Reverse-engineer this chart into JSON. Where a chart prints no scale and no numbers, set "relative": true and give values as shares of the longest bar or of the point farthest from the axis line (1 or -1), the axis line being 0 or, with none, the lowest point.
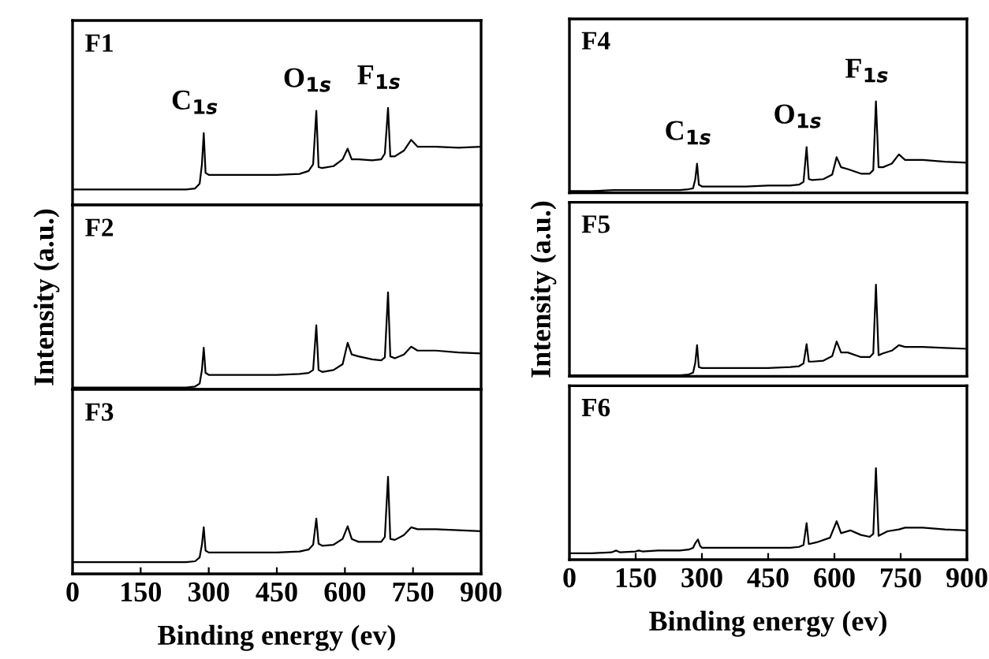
{
  "chart_data": [
    {
      "type": "line",
      "relative": true,
      "xlim": [
        0,
        900
      ],
      "xticks": [
        0,
        150,
        300,
        450,
        600,
        750,
        900
      ],
      "tick_labels": false,
      "x": [
        0,
        50,
        100,
        150,
        200,
        250,
        270,
        280,
        285,
        289,
        293,
        300,
        350,
        400,
        450,
        500,
        520,
        530,
        537,
        542,
        550,
        575,
        595,
        606,
        615,
        630,
        660,
        680,
        688,
        695,
        700,
        710,
        730,
        746,
        760,
        800,
        850,
        900
      ],
      "series": [
        {
          "color": "#000000",
          "values": [
            0.16,
            0.16,
            0.16,
            0.16,
            0.16,
            0.16,
            0.17,
            0.22,
            0.42,
            0.74,
            0.33,
            0.31,
            0.31,
            0.31,
            0.31,
            0.32,
            0.35,
            0.42,
            0.97,
            0.39,
            0.38,
            0.4,
            0.47,
            0.58,
            0.47,
            0.47,
            0.46,
            0.47,
            0.53,
            1,
            0.5,
            0.5,
            0.56,
            0.67,
            0.6,
            0.6,
            0.59,
            0.6
          ]
        }
      ],
      "annotations": [
        "F1",
        {
          "text": "C$_{1s}$",
          "x": 289,
          "y": 0.74
        },
        {
          "text": "O$_{1s}$",
          "x": 537,
          "y": 0.97
        },
        {
          "text": "F$_{1s}$",
          "x": 695,
          "y": 1
        }
      ]
    },
    {
      "type": "line",
      "relative": true,
      "xlim": [
        0,
        900
      ],
      "xticks": [
        0,
        150,
        300,
        450,
        600,
        750,
        900
      ],
      "tick_labels": false,
      "ylabel": "Intensity (a.u.)",
      "x": [
        0,
        50,
        100,
        150,
        200,
        250,
        270,
        280,
        285,
        289,
        293,
        300,
        350,
        400,
        450,
        500,
        520,
        530,
        537,
        542,
        550,
        575,
        595,
        606,
        615,
        630,
        660,
        680,
        688,
        695,
        700,
        710,
        730,
        746,
        760,
        800,
        850,
        900
      ],
      "series": [
        {
          "color": "#000000",
          "values": [
            0.02,
            0.02,
            0.02,
            0.02,
            0.02,
            0.02,
            0.03,
            0.06,
            0.2,
            0.43,
            0.17,
            0.15,
            0.15,
            0.15,
            0.15,
            0.16,
            0.17,
            0.2,
            0.66,
            0.2,
            0.18,
            0.2,
            0.26,
            0.48,
            0.36,
            0.34,
            0.31,
            0.3,
            0.33,
            1,
            0.34,
            0.32,
            0.36,
            0.44,
            0.4,
            0.4,
            0.38,
            0.37
          ]
        }
      ],
      "annotations": [
        "F2"
      ]
    },
    {
      "type": "line",
      "relative": true,
      "xlim": [
        0,
        900
      ],
      "xticks": [
        0,
        150,
        300,
        450,
        600,
        750,
        900
      ],
      "tick_labels": "x",
      "xlabel": "Binding energy (ev)",
      "x": [
        0,
        50,
        100,
        150,
        200,
        250,
        270,
        280,
        285,
        289,
        293,
        300,
        350,
        400,
        450,
        500,
        520,
        530,
        537,
        542,
        550,
        575,
        595,
        606,
        615,
        630,
        660,
        680,
        688,
        695,
        700,
        710,
        730,
        746,
        760,
        800,
        850,
        900
      ],
      "series": [
        {
          "color": "#000000",
          "values": [
            0.12,
            0.12,
            0.12,
            0.12,
            0.12,
            0.12,
            0.13,
            0.17,
            0.3,
            0.48,
            0.24,
            0.22,
            0.22,
            0.22,
            0.22,
            0.23,
            0.25,
            0.3,
            0.57,
            0.31,
            0.29,
            0.3,
            0.36,
            0.49,
            0.36,
            0.33,
            0.33,
            0.33,
            0.38,
            1,
            0.36,
            0.35,
            0.4,
            0.48,
            0.46,
            0.46,
            0.45,
            0.44
          ]
        }
      ],
      "annotations": [
        "F3"
      ]
    },
    {
      "type": "line",
      "relative": true,
      "xlim": [
        0,
        900
      ],
      "xticks": [
        0,
        150,
        300,
        450,
        600,
        750,
        900
      ],
      "tick_labels": false,
      "x": [
        0,
        50,
        100,
        150,
        200,
        250,
        270,
        280,
        285,
        289,
        293,
        300,
        350,
        400,
        450,
        500,
        520,
        530,
        537,
        542,
        550,
        575,
        595,
        605,
        615,
        630,
        660,
        680,
        688,
        694,
        700,
        710,
        730,
        746,
        760,
        800,
        850,
        900
      ],
      "series": [
        {
          "color": "#000000",
          "values": [
            0.02,
            0.02,
            0.03,
            0.03,
            0.03,
            0.03,
            0.04,
            0.05,
            0.15,
            0.32,
            0.09,
            0.07,
            0.07,
            0.07,
            0.08,
            0.08,
            0.09,
            0.12,
            0.5,
            0.15,
            0.14,
            0.15,
            0.2,
            0.39,
            0.28,
            0.26,
            0.21,
            0.21,
            0.25,
            1,
            0.28,
            0.28,
            0.32,
            0.42,
            0.36,
            0.36,
            0.34,
            0.33
          ]
        }
      ],
      "annotations": [
        "F4",
        {
          "text": "C$_{1s}$",
          "x": 289,
          "y": 0.32
        },
        {
          "text": "O$_{1s}$",
          "x": 537,
          "y": 0.5
        },
        {
          "text": "F$_{1s}$",
          "x": 694,
          "y": 1
        }
      ]
    },
    {
      "type": "line",
      "relative": true,
      "xlim": [
        0,
        900
      ],
      "xticks": [
        0,
        150,
        300,
        450,
        600,
        750,
        900
      ],
      "tick_labels": false,
      "ylabel": "Intensity (a.u.)",
      "x": [
        0,
        50,
        100,
        150,
        200,
        250,
        270,
        280,
        285,
        289,
        293,
        300,
        350,
        400,
        450,
        500,
        520,
        530,
        537,
        542,
        550,
        575,
        595,
        605,
        615,
        630,
        660,
        680,
        688,
        694,
        700,
        710,
        730,
        746,
        760,
        800,
        850,
        900
      ],
      "series": [
        {
          "color": "#000000",
          "values": [
            0.01,
            0.01,
            0.01,
            0.01,
            0.01,
            0.01,
            0.02,
            0.04,
            0.15,
            0.34,
            0.1,
            0.09,
            0.09,
            0.09,
            0.09,
            0.1,
            0.11,
            0.14,
            0.35,
            0.16,
            0.16,
            0.17,
            0.22,
            0.38,
            0.26,
            0.26,
            0.21,
            0.21,
            0.25,
            1,
            0.23,
            0.25,
            0.28,
            0.34,
            0.32,
            0.32,
            0.31,
            0.3
          ]
        }
      ],
      "annotations": [
        "F5"
      ]
    },
    {
      "type": "line",
      "relative": true,
      "xlim": [
        0,
        900
      ],
      "xticks": [
        0,
        150,
        300,
        450,
        600,
        750,
        900
      ],
      "tick_labels": "x",
      "xlabel": "Binding energy (ev)",
      "x": [
        0,
        50,
        95,
        106,
        115,
        150,
        157,
        165,
        200,
        250,
        270,
        280,
        285,
        291,
        296,
        300,
        350,
        400,
        450,
        500,
        520,
        530,
        537,
        542,
        560,
        590,
        605,
        615,
        636,
        660,
        680,
        688,
        694,
        700,
        720,
        746,
        760,
        800,
        850,
        900
      ],
      "series": [
        {
          "color": "#000000",
          "values": [
            0.07,
            0.07,
            0.08,
            0.1,
            0.08,
            0.09,
            0.1,
            0.09,
            0.1,
            0.1,
            0.11,
            0.13,
            0.18,
            0.22,
            0.15,
            0.13,
            0.13,
            0.13,
            0.13,
            0.13,
            0.14,
            0.16,
            0.4,
            0.17,
            0.19,
            0.24,
            0.42,
            0.29,
            0.32,
            0.27,
            0.25,
            0.28,
            1,
            0.26,
            0.31,
            0.33,
            0.35,
            0.35,
            0.33,
            0.32
          ]
        }
      ],
      "annotations": [
        "F6"
      ]
    }
  ]
}
